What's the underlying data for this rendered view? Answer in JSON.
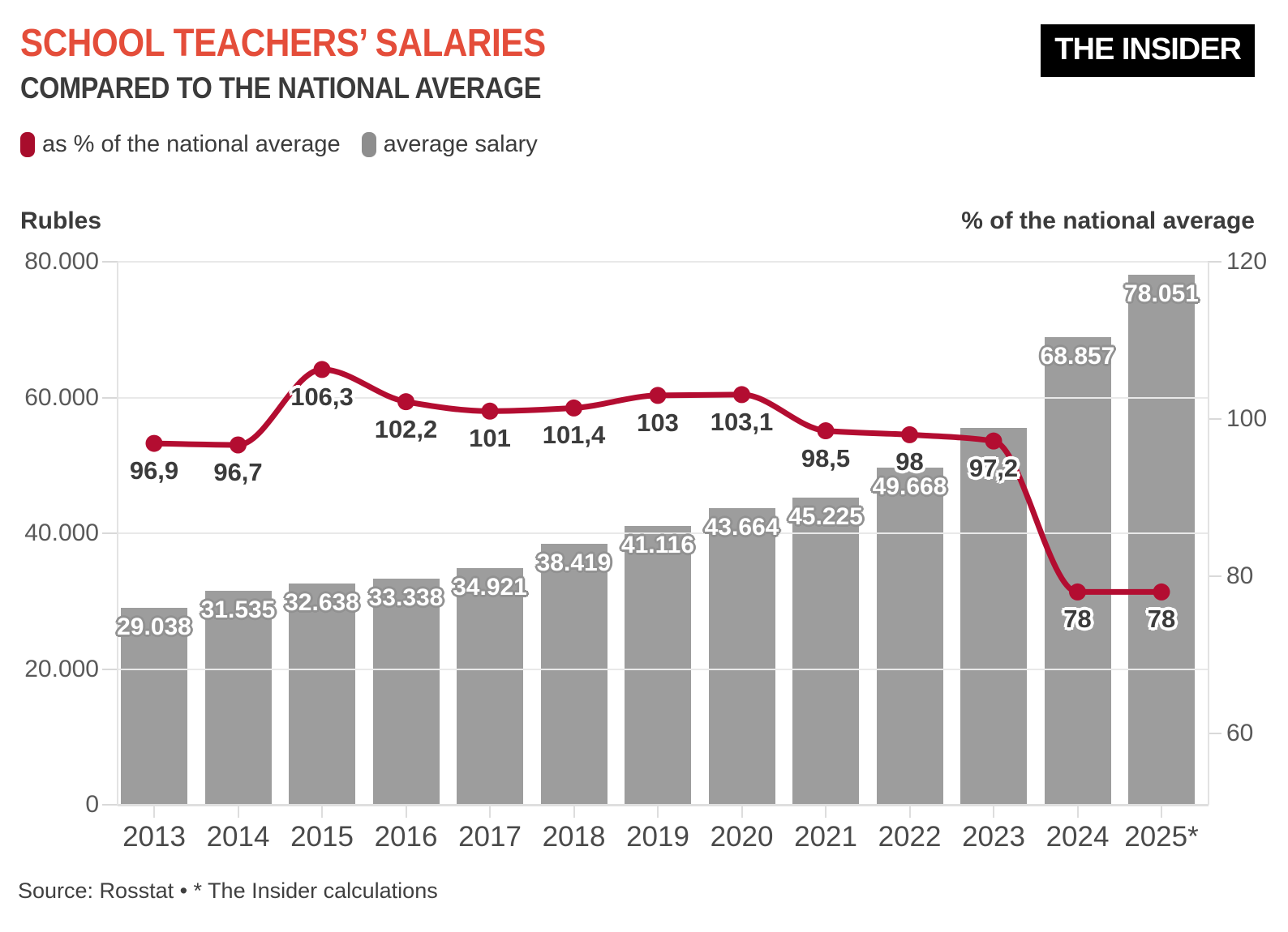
{
  "header": {
    "title": "SCHOOL TEACHERS’ SALARIES",
    "subtitle": "COMPARED TO THE NATIONAL AVERAGE",
    "logo": "THE INSIDER"
  },
  "legend": [
    {
      "label": "as % of the national average",
      "color": "#A80D2C"
    },
    {
      "label": "average salary",
      "color": "#8E8E8E"
    }
  ],
  "footer": {
    "source": "Source: Rosstat • * The Insider calculations"
  },
  "colors": {
    "title_red": "#E44D3A",
    "bar_gray": "#9D9D9D",
    "line_red": "#B30D31",
    "dark_text": "#3B3B3B"
  },
  "chart_data": {
    "type": "bar+line",
    "categories": [
      "2013",
      "2014",
      "2015",
      "2016",
      "2017",
      "2018",
      "2019",
      "2020",
      "2021",
      "2022",
      "2023",
      "2024",
      "2025*"
    ],
    "series": [
      {
        "name": "average salary",
        "type": "bar",
        "axis": "left",
        "unit": "rubles",
        "color": "#9D9D9D",
        "values": [
          29038,
          31535,
          32638,
          33338,
          34921,
          38419,
          41116,
          43664,
          45225,
          49668,
          55500,
          68857,
          78051
        ],
        "labels": [
          "29.038",
          "31.535",
          "32.638",
          "33.338",
          "34.921",
          "38.419",
          "41.116",
          "43.664",
          "45.225",
          "49.668",
          "",
          "68.857",
          "78.051"
        ]
      },
      {
        "name": "as % of the national average",
        "type": "line",
        "axis": "right",
        "unit": "%",
        "color": "#B30D31",
        "values": [
          96.9,
          96.7,
          106.3,
          102.2,
          101,
          101.4,
          103,
          103.1,
          98.5,
          98,
          97.2,
          78,
          78
        ],
        "labels": [
          "96,9",
          "96,7",
          "106,3",
          "102,2",
          "101",
          "101,4",
          "103",
          "103,1",
          "98,5",
          "98",
          "97,2",
          "78",
          "78"
        ]
      }
    ],
    "left_axis": {
      "title": "Rubles",
      "range": [
        0,
        80000
      ],
      "ticks": [
        {
          "value": 80000,
          "label": "80.000"
        },
        {
          "value": 60000,
          "label": "60.000"
        },
        {
          "value": 40000,
          "label": "40.000"
        },
        {
          "value": 20000,
          "label": "20.000"
        },
        {
          "value": 0,
          "label": "0"
        }
      ]
    },
    "right_axis": {
      "title": "% of the national average",
      "ticks": [
        {
          "value": 120,
          "label": "120"
        },
        {
          "value": 100,
          "label": "100"
        },
        {
          "value": 80,
          "label": "80"
        },
        {
          "value": 60,
          "label": "60"
        }
      ]
    },
    "grid": "horizontal-left-axis",
    "legend_position": "top-left",
    "curve": "monotone"
  }
}
